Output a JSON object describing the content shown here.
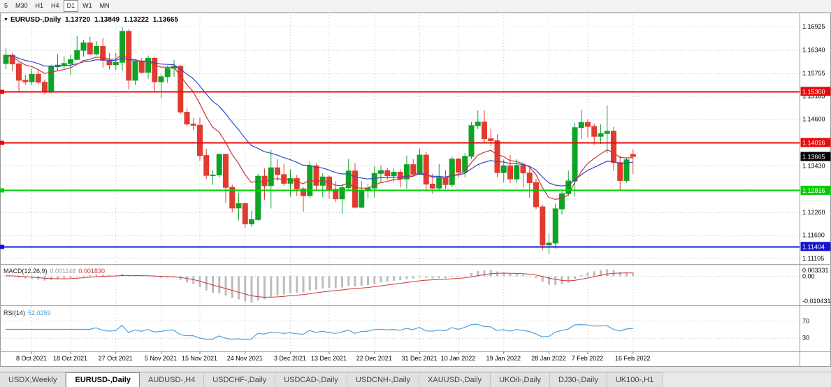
{
  "toolbar": {
    "timeframes": [
      "5",
      "M30",
      "H1",
      "H4",
      "D1",
      "W1",
      "MN"
    ]
  },
  "chart": {
    "symbol": "EURUSD-,Daily",
    "open": "1.13720",
    "high": "1.13849",
    "low": "1.13222",
    "close": "1.13665"
  },
  "price_axis": {
    "ticks": [
      {
        "v": 1.16925,
        "label": "1.16925"
      },
      {
        "v": 1.1634,
        "label": "1.16340"
      },
      {
        "v": 1.15755,
        "label": "1.15755"
      },
      {
        "v": 1.15185,
        "label": "1.15185"
      },
      {
        "v": 1.146,
        "label": "1.14600"
      },
      {
        "v": 1.1343,
        "label": "1.13430"
      },
      {
        "v": 1.1226,
        "label": "1.12260"
      },
      {
        "v": 1.1169,
        "label": "1.11690"
      },
      {
        "v": 1.11105,
        "label": "1.11105"
      }
    ],
    "grid_only": [
      1.14015,
      1.12845
    ]
  },
  "hlines": [
    {
      "price": 1.153,
      "label": "1.15300",
      "color": "#e80909"
    },
    {
      "price": 1.14016,
      "label": "1.14016",
      "color": "#e80909"
    },
    {
      "price": 1.12816,
      "label": "1.12816",
      "color": "#00cf00"
    },
    {
      "price": 1.11404,
      "label": "1.11404",
      "color": "#1414cc"
    }
  ],
  "current_price": {
    "price": 1.13665,
    "label": "1.13665",
    "color": "#000000"
  },
  "macd": {
    "title": "MACD(12,26,9)",
    "main": "0.001148",
    "signal": "0.001830",
    "axis_top": "0.003331",
    "axis_zero": "0.00",
    "axis_bottom": "-0.010431"
  },
  "rsi": {
    "title": "RSI(14)",
    "value": "52.0259",
    "levels": [
      70,
      30
    ],
    "level_labels": [
      "70",
      "30"
    ]
  },
  "x_axis": {
    "ticks": [
      {
        "i": 4,
        "label": "8 Oct 2021"
      },
      {
        "i": 10,
        "label": "18 Oct 2021"
      },
      {
        "i": 17,
        "label": "27 Oct 2021"
      },
      {
        "i": 24,
        "label": "5 Nov 2021"
      },
      {
        "i": 30,
        "label": "15 Nov 2021"
      },
      {
        "i": 37,
        "label": "24 Nov 2021"
      },
      {
        "i": 44,
        "label": "3 Dec 2021"
      },
      {
        "i": 50,
        "label": "13 Dec 2021"
      },
      {
        "i": 57,
        "label": "22 Dec 2021"
      },
      {
        "i": 64,
        "label": "31 Dec 2021"
      },
      {
        "i": 70,
        "label": "10 Jan 2022"
      },
      {
        "i": 77,
        "label": "19 Jan 2022"
      },
      {
        "i": 84,
        "label": "28 Jan 2022"
      },
      {
        "i": 90,
        "label": "7 Feb 2022"
      },
      {
        "i": 97,
        "label": "16 Feb 2022"
      }
    ]
  },
  "tabs": {
    "items": [
      "USDX,Weekly",
      "EURUSD-,Daily",
      "AUDUSD-,H4",
      "USDCHF-,Daily",
      "USDCAD-,Daily",
      "USDCNH-,Daily",
      "XAUUSD-,Daily",
      "UKOil-,Daily",
      "DJ30-,Daily",
      "UK100-,H1"
    ]
  },
  "colors": {
    "up": "#0da426",
    "down": "#e13b30",
    "ma_slow": "#3348c8",
    "ma_fast": "#c93636",
    "macd_hist": "#bdbdbd",
    "macd_signal": "#c93636",
    "rsi": "#4da1d8",
    "grid": "#c6c6c6"
  },
  "chart_data": {
    "type": "candlestick",
    "title": "EURUSD-,Daily",
    "symbol": "EURUSD-",
    "timeframe": "Daily",
    "last_ohlc": {
      "open": 1.1372,
      "high": 1.13849,
      "low": 1.13222,
      "close": 1.13665
    },
    "y_range": [
      1.1098,
      1.1721
    ],
    "candles": [
      [
        1.16,
        1.164,
        1.1586,
        1.1621
      ],
      [
        1.1621,
        1.1627,
        1.1582,
        1.1599
      ],
      [
        1.1599,
        1.1603,
        1.1529,
        1.1558
      ],
      [
        1.1558,
        1.1572,
        1.1546,
        1.1554
      ],
      [
        1.1554,
        1.1586,
        1.1547,
        1.1573
      ],
      [
        1.1573,
        1.1586,
        1.1549,
        1.1553
      ],
      [
        1.1553,
        1.156,
        1.1522,
        1.153
      ],
      [
        1.153,
        1.1597,
        1.1525,
        1.1592
      ],
      [
        1.1592,
        1.1624,
        1.1582,
        1.1596
      ],
      [
        1.1596,
        1.1618,
        1.1588,
        1.16
      ],
      [
        1.16,
        1.1622,
        1.1571,
        1.161
      ],
      [
        1.161,
        1.1669,
        1.1609,
        1.1633
      ],
      [
        1.1633,
        1.1659,
        1.1617,
        1.1652
      ],
      [
        1.1652,
        1.1667,
        1.1622,
        1.1624
      ],
      [
        1.1624,
        1.1656,
        1.162,
        1.1643
      ],
      [
        1.1643,
        1.1664,
        1.159,
        1.1608
      ],
      [
        1.1608,
        1.1626,
        1.1585,
        1.1597
      ],
      [
        1.1597,
        1.1626,
        1.1584,
        1.1603
      ],
      [
        1.1603,
        1.1692,
        1.1582,
        1.1681
      ],
      [
        1.1681,
        1.1686,
        1.1535,
        1.1558
      ],
      [
        1.1558,
        1.1609,
        1.1546,
        1.1606
      ],
      [
        1.1606,
        1.1614,
        1.1575,
        1.1578
      ],
      [
        1.1578,
        1.162,
        1.1562,
        1.1613
      ],
      [
        1.1613,
        1.1617,
        1.1528,
        1.1554
      ],
      [
        1.1554,
        1.1573,
        1.1513,
        1.1567
      ],
      [
        1.1567,
        1.1595,
        1.1551,
        1.1588
      ],
      [
        1.1588,
        1.1609,
        1.1567,
        1.1593
      ],
      [
        1.1593,
        1.1596,
        1.1474,
        1.1478
      ],
      [
        1.1478,
        1.1489,
        1.1443,
        1.1448
      ],
      [
        1.1448,
        1.1463,
        1.1433,
        1.1445
      ],
      [
        1.1445,
        1.1464,
        1.1356,
        1.1369
      ],
      [
        1.1369,
        1.1386,
        1.131,
        1.1319
      ],
      [
        1.1319,
        1.1332,
        1.1295,
        1.132
      ],
      [
        1.132,
        1.1374,
        1.1314,
        1.1372
      ],
      [
        1.1372,
        1.1374,
        1.125,
        1.1289
      ],
      [
        1.1289,
        1.1296,
        1.1226,
        1.1237
      ],
      [
        1.1237,
        1.1275,
        1.1206,
        1.1248
      ],
      [
        1.1248,
        1.1251,
        1.1186,
        1.1197
      ],
      [
        1.1197,
        1.123,
        1.119,
        1.1208
      ],
      [
        1.1208,
        1.1323,
        1.1205,
        1.1317
      ],
      [
        1.1317,
        1.1336,
        1.1258,
        1.1293
      ],
      [
        1.1293,
        1.1383,
        1.1236,
        1.1338
      ],
      [
        1.1338,
        1.136,
        1.1305,
        1.1321
      ],
      [
        1.1321,
        1.1348,
        1.1293,
        1.1299
      ],
      [
        1.1299,
        1.1334,
        1.1266,
        1.1311
      ],
      [
        1.1311,
        1.132,
        1.1267,
        1.1285
      ],
      [
        1.1285,
        1.129,
        1.1228,
        1.1268
      ],
      [
        1.1268,
        1.1354,
        1.1263,
        1.1343
      ],
      [
        1.1343,
        1.1349,
        1.128,
        1.1294
      ],
      [
        1.1294,
        1.1324,
        1.1264,
        1.1315
      ],
      [
        1.1315,
        1.1319,
        1.126,
        1.1284
      ],
      [
        1.1284,
        1.1304,
        1.1252,
        1.126
      ],
      [
        1.126,
        1.1298,
        1.1222,
        1.1288
      ],
      [
        1.1288,
        1.136,
        1.1281,
        1.133
      ],
      [
        1.133,
        1.135,
        1.1236,
        1.1239
      ],
      [
        1.1239,
        1.1305,
        1.1237,
        1.128
      ],
      [
        1.128,
        1.1298,
        1.1261,
        1.1287
      ],
      [
        1.1287,
        1.1342,
        1.1263,
        1.1324
      ],
      [
        1.1324,
        1.1344,
        1.13,
        1.1331
      ],
      [
        1.1331,
        1.1338,
        1.1308,
        1.1318
      ],
      [
        1.1318,
        1.1336,
        1.1302,
        1.1327
      ],
      [
        1.1327,
        1.1334,
        1.1289,
        1.131
      ],
      [
        1.131,
        1.1369,
        1.1285,
        1.1346
      ],
      [
        1.1346,
        1.136,
        1.1316,
        1.1322
      ],
      [
        1.1322,
        1.1386,
        1.132,
        1.137
      ],
      [
        1.137,
        1.1379,
        1.1279,
        1.1297
      ],
      [
        1.1297,
        1.1323,
        1.1272,
        1.1287
      ],
      [
        1.1287,
        1.1347,
        1.128,
        1.1312
      ],
      [
        1.1312,
        1.1332,
        1.1285,
        1.1296
      ],
      [
        1.1296,
        1.1366,
        1.1289,
        1.136
      ],
      [
        1.136,
        1.1363,
        1.1313,
        1.1327
      ],
      [
        1.1327,
        1.1375,
        1.1314,
        1.1367
      ],
      [
        1.1367,
        1.1453,
        1.136,
        1.1444
      ],
      [
        1.1444,
        1.1482,
        1.1435,
        1.1453
      ],
      [
        1.1453,
        1.1483,
        1.1399,
        1.1411
      ],
      [
        1.1411,
        1.1436,
        1.1392,
        1.1406
      ],
      [
        1.1406,
        1.1422,
        1.1314,
        1.1326
      ],
      [
        1.1326,
        1.1359,
        1.1301,
        1.1343
      ],
      [
        1.1343,
        1.137,
        1.13,
        1.131
      ],
      [
        1.131,
        1.136,
        1.13,
        1.1344
      ],
      [
        1.1344,
        1.1349,
        1.129,
        1.1325
      ],
      [
        1.1325,
        1.1339,
        1.1263,
        1.1301
      ],
      [
        1.1301,
        1.131,
        1.1234,
        1.124
      ],
      [
        1.124,
        1.1246,
        1.1131,
        1.1144
      ],
      [
        1.1144,
        1.1174,
        1.1121,
        1.1149
      ],
      [
        1.1149,
        1.1248,
        1.1135,
        1.1235
      ],
      [
        1.1235,
        1.128,
        1.1221,
        1.1273
      ],
      [
        1.1273,
        1.1331,
        1.1267,
        1.1305
      ],
      [
        1.1305,
        1.1451,
        1.1266,
        1.1439
      ],
      [
        1.1439,
        1.1483,
        1.1411,
        1.1452
      ],
      [
        1.1452,
        1.146,
        1.1414,
        1.1442
      ],
      [
        1.1442,
        1.1449,
        1.1396,
        1.1417
      ],
      [
        1.1417,
        1.1447,
        1.1398,
        1.1424
      ],
      [
        1.1424,
        1.1495,
        1.1375,
        1.143
      ],
      [
        1.143,
        1.1441,
        1.133,
        1.1351
      ],
      [
        1.1351,
        1.1369,
        1.128,
        1.1306
      ],
      [
        1.1306,
        1.1363,
        1.1301,
        1.1358
      ],
      [
        1.1372,
        1.13849,
        1.13222,
        1.13665
      ]
    ]
  }
}
